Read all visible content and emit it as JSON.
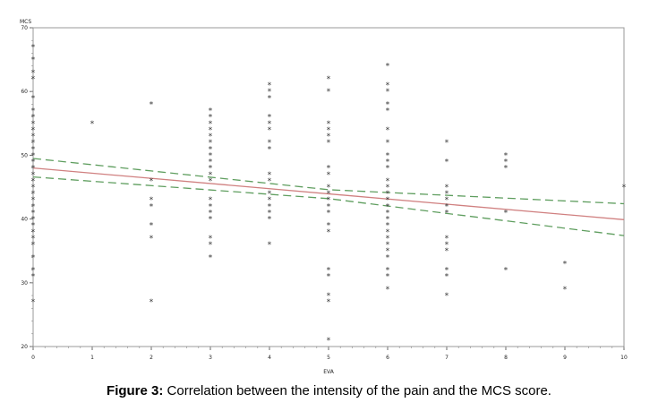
{
  "caption": {
    "label": "Figure 3:",
    "text": "Correlation between the intensity of the pain and the MCS score."
  },
  "chart_data": {
    "type": "scatter",
    "xlabel": "EVA",
    "ylabel": "MCS",
    "xlim": [
      0,
      10
    ],
    "ylim": [
      20,
      70
    ],
    "xticks": [
      0,
      1,
      2,
      3,
      4,
      5,
      6,
      7,
      8,
      9,
      10
    ],
    "yticks": [
      20,
      30,
      40,
      50,
      60,
      70
    ],
    "marker": "*",
    "points": [
      [
        0,
        67
      ],
      [
        0,
        65
      ],
      [
        0,
        63
      ],
      [
        0,
        62
      ],
      [
        0,
        59
      ],
      [
        0,
        57
      ],
      [
        0,
        56
      ],
      [
        0,
        55
      ],
      [
        0,
        54
      ],
      [
        0,
        53
      ],
      [
        0,
        52
      ],
      [
        0,
        51
      ],
      [
        0,
        50
      ],
      [
        0,
        49
      ],
      [
        0,
        48
      ],
      [
        0,
        47
      ],
      [
        0,
        46
      ],
      [
        0,
        45
      ],
      [
        0,
        44
      ],
      [
        0,
        43
      ],
      [
        0,
        42
      ],
      [
        0,
        41
      ],
      [
        0,
        40
      ],
      [
        0,
        39
      ],
      [
        0,
        38
      ],
      [
        0,
        37
      ],
      [
        0,
        36
      ],
      [
        0,
        34
      ],
      [
        0,
        32
      ],
      [
        0,
        31
      ],
      [
        0,
        27
      ],
      [
        1,
        55
      ],
      [
        2,
        58
      ],
      [
        2,
        46
      ],
      [
        2,
        43
      ],
      [
        2,
        42
      ],
      [
        2,
        39
      ],
      [
        2,
        37
      ],
      [
        2,
        27
      ],
      [
        3,
        57
      ],
      [
        3,
        56
      ],
      [
        3,
        55
      ],
      [
        3,
        54
      ],
      [
        3,
        53
      ],
      [
        3,
        52
      ],
      [
        3,
        51
      ],
      [
        3,
        50
      ],
      [
        3,
        49
      ],
      [
        3,
        48
      ],
      [
        3,
        47
      ],
      [
        3,
        46
      ],
      [
        3,
        43
      ],
      [
        3,
        42
      ],
      [
        3,
        41
      ],
      [
        3,
        40
      ],
      [
        3,
        37
      ],
      [
        3,
        36
      ],
      [
        3,
        34
      ],
      [
        4,
        61
      ],
      [
        4,
        60
      ],
      [
        4,
        59
      ],
      [
        4,
        56
      ],
      [
        4,
        55
      ],
      [
        4,
        54
      ],
      [
        4,
        52
      ],
      [
        4,
        51
      ],
      [
        4,
        47
      ],
      [
        4,
        46
      ],
      [
        4,
        44
      ],
      [
        4,
        43
      ],
      [
        4,
        42
      ],
      [
        4,
        41
      ],
      [
        4,
        40
      ],
      [
        4,
        36
      ],
      [
        5,
        62
      ],
      [
        5,
        60
      ],
      [
        5,
        55
      ],
      [
        5,
        54
      ],
      [
        5,
        53
      ],
      [
        5,
        52
      ],
      [
        5,
        48
      ],
      [
        5,
        47
      ],
      [
        5,
        45
      ],
      [
        5,
        44
      ],
      [
        5,
        43
      ],
      [
        5,
        42
      ],
      [
        5,
        41
      ],
      [
        5,
        39
      ],
      [
        5,
        38
      ],
      [
        5,
        32
      ],
      [
        5,
        31
      ],
      [
        5,
        28
      ],
      [
        5,
        27
      ],
      [
        5,
        21
      ],
      [
        6,
        64
      ],
      [
        6,
        61
      ],
      [
        6,
        60
      ],
      [
        6,
        58
      ],
      [
        6,
        57
      ],
      [
        6,
        54
      ],
      [
        6,
        52
      ],
      [
        6,
        50
      ],
      [
        6,
        49
      ],
      [
        6,
        48
      ],
      [
        6,
        46
      ],
      [
        6,
        45
      ],
      [
        6,
        44
      ],
      [
        6,
        43
      ],
      [
        6,
        42
      ],
      [
        6,
        41
      ],
      [
        6,
        40
      ],
      [
        6,
        39
      ],
      [
        6,
        38
      ],
      [
        6,
        37
      ],
      [
        6,
        36
      ],
      [
        6,
        35
      ],
      [
        6,
        34
      ],
      [
        6,
        32
      ],
      [
        6,
        31
      ],
      [
        6,
        29
      ],
      [
        7,
        52
      ],
      [
        7,
        49
      ],
      [
        7,
        45
      ],
      [
        7,
        44
      ],
      [
        7,
        43
      ],
      [
        7,
        42
      ],
      [
        7,
        41
      ],
      [
        7,
        37
      ],
      [
        7,
        36
      ],
      [
        7,
        35
      ],
      [
        7,
        32
      ],
      [
        7,
        31
      ],
      [
        7,
        28
      ],
      [
        8,
        50
      ],
      [
        8,
        49
      ],
      [
        8,
        48
      ],
      [
        8,
        41
      ],
      [
        8,
        32
      ],
      [
        9,
        33
      ],
      [
        9,
        29
      ],
      [
        10,
        45
      ]
    ],
    "fit_line": {
      "x": [
        0,
        10
      ],
      "y": [
        48.0,
        39.9
      ],
      "color": "#d08080"
    },
    "confidence_upper": {
      "x": [
        0,
        5,
        10
      ],
      "y": [
        49.5,
        44.6,
        42.4
      ],
      "color": "#5f9e5f"
    },
    "confidence_lower": {
      "x": [
        0,
        5,
        10
      ],
      "y": [
        46.6,
        43.2,
        37.4
      ],
      "color": "#5f9e5f"
    }
  }
}
